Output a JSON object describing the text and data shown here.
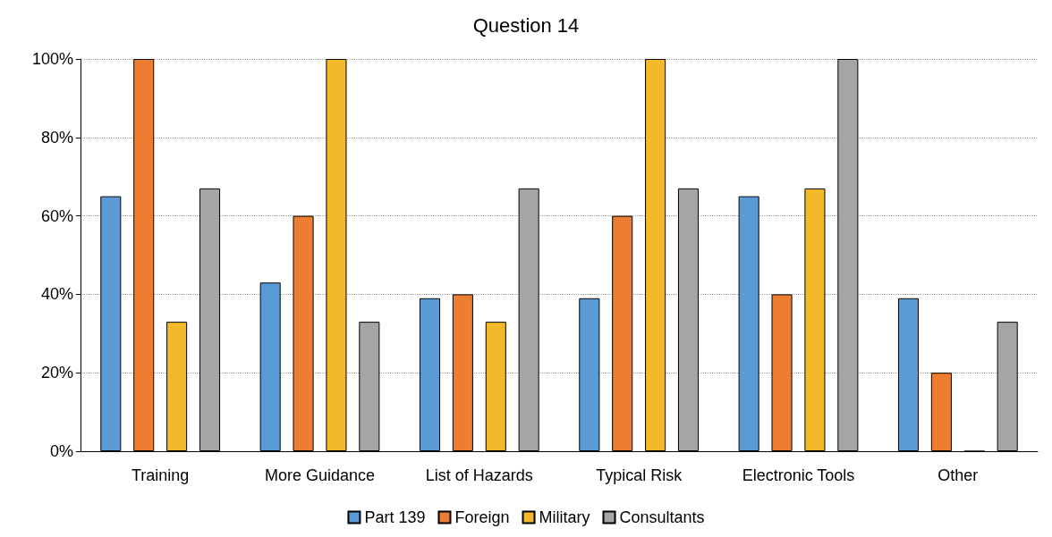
{
  "chart_data": {
    "type": "bar",
    "title": "Question 14",
    "categories": [
      "Training",
      "More Guidance",
      "List of Hazards",
      "Typical Risk",
      "Electronic Tools",
      "Other"
    ],
    "series": [
      {
        "name": "Part 139",
        "color": "#5b9bd5",
        "values": [
          65,
          43,
          39,
          39,
          65,
          39
        ]
      },
      {
        "name": "Foreign",
        "color": "#ed7d31",
        "values": [
          100,
          60,
          40,
          60,
          40,
          20
        ]
      },
      {
        "name": "Military",
        "color": "#f4b92a",
        "values": [
          33,
          100,
          33,
          100,
          67,
          0
        ]
      },
      {
        "name": "Consultants",
        "color": "#a5a5a5",
        "values": [
          67,
          33,
          67,
          67,
          100,
          33
        ]
      }
    ],
    "ylim": [
      0,
      100
    ],
    "yticks": [
      {
        "value": 0,
        "label": "0%"
      },
      {
        "value": 20,
        "label": "20%"
      },
      {
        "value": 40,
        "label": "40%"
      },
      {
        "value": 60,
        "label": "60%"
      },
      {
        "value": 80,
        "label": "80%"
      },
      {
        "value": 100,
        "label": "100%"
      }
    ],
    "grid": "y",
    "legend": "bottom"
  }
}
